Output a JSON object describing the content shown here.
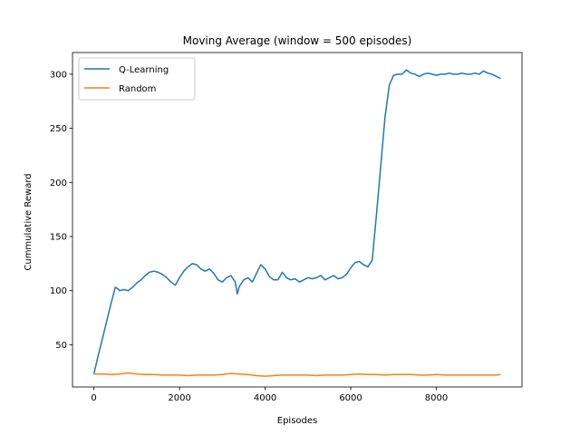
{
  "chart_data": {
    "type": "line",
    "title": "Moving Average (window = 500 episodes)",
    "xlabel": "Episodes",
    "ylabel": "Cummulative Reward",
    "xlim": [
      -500,
      10000
    ],
    "ylim": [
      11,
      320
    ],
    "xticks": [
      0,
      2000,
      4000,
      6000,
      8000
    ],
    "yticks": [
      50,
      100,
      150,
      200,
      250,
      300
    ],
    "grid": false,
    "legend_position": "top-left",
    "series": [
      {
        "name": "Q-Learning",
        "color": "#1f77b4",
        "x": [
          0,
          100,
          200,
          300,
          400,
          500,
          550,
          600,
          700,
          800,
          900,
          1000,
          1100,
          1200,
          1300,
          1400,
          1500,
          1600,
          1700,
          1800,
          1900,
          2000,
          2100,
          2200,
          2300,
          2400,
          2500,
          2600,
          2700,
          2800,
          2900,
          3000,
          3100,
          3200,
          3300,
          3350,
          3400,
          3500,
          3600,
          3700,
          3800,
          3900,
          4000,
          4100,
          4200,
          4300,
          4400,
          4500,
          4600,
          4700,
          4800,
          4900,
          5000,
          5100,
          5200,
          5300,
          5400,
          5500,
          5600,
          5700,
          5800,
          5900,
          6000,
          6100,
          6200,
          6300,
          6400,
          6500,
          6600,
          6700,
          6800,
          6900,
          7000,
          7100,
          7200,
          7300,
          7400,
          7500,
          7600,
          7700,
          7800,
          7900,
          8000,
          8100,
          8200,
          8300,
          8400,
          8500,
          8600,
          8700,
          8800,
          8900,
          9000,
          9100,
          9200,
          9300,
          9400,
          9500
        ],
        "y": [
          23,
          40,
          56,
          72,
          88,
          103,
          102,
          100,
          101,
          100,
          103,
          107,
          110,
          114,
          117,
          118,
          117,
          115,
          112,
          108,
          105,
          112,
          118,
          122,
          125,
          124,
          120,
          118,
          120,
          116,
          110,
          108,
          112,
          114,
          108,
          97,
          104,
          110,
          112,
          108,
          116,
          124,
          120,
          113,
          110,
          110,
          117,
          112,
          110,
          111,
          108,
          110,
          112,
          111,
          112,
          114,
          110,
          112,
          114,
          111,
          112,
          115,
          121,
          126,
          127,
          124,
          122,
          128,
          170,
          215,
          260,
          290,
          299,
          300,
          300,
          304,
          301,
          300,
          298,
          300,
          301,
          300,
          299,
          300,
          300,
          301,
          300,
          300,
          301,
          300,
          300,
          301,
          300,
          303,
          301,
          300,
          298,
          296
        ]
      },
      {
        "name": "Random",
        "color": "#ff7f0e",
        "x": [
          0,
          200,
          400,
          600,
          800,
          1000,
          1200,
          1400,
          1600,
          1800,
          2000,
          2200,
          2400,
          2600,
          2800,
          3000,
          3200,
          3400,
          3600,
          3800,
          4000,
          4200,
          4400,
          4600,
          4800,
          5000,
          5200,
          5400,
          5600,
          5800,
          6000,
          6200,
          6400,
          6600,
          6800,
          7000,
          7200,
          7400,
          7600,
          7800,
          8000,
          8200,
          8400,
          8600,
          8800,
          9000,
          9200,
          9400,
          9500
        ],
        "y": [
          23,
          23,
          22.5,
          23,
          24,
          23,
          22.5,
          22.5,
          22,
          22,
          22,
          21.5,
          22,
          22,
          22,
          22.5,
          23.5,
          23,
          22.5,
          21.5,
          21,
          21.5,
          22,
          22,
          22,
          22,
          21.5,
          22,
          22,
          22,
          22.5,
          23,
          22.5,
          22.5,
          22,
          22.5,
          22.5,
          22.5,
          22,
          22,
          22.5,
          22,
          22,
          22,
          22,
          22,
          22,
          22,
          22.5
        ]
      }
    ]
  }
}
